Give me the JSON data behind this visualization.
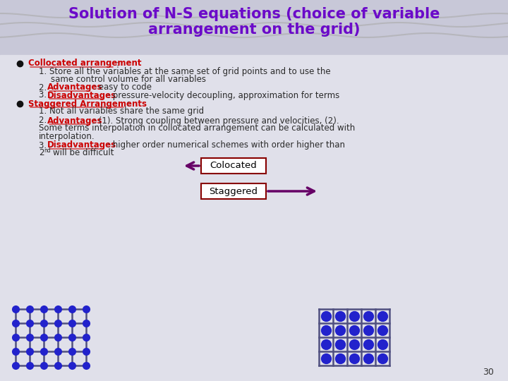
{
  "title_line1": "Solution of N-S equations (choice of variable",
  "title_line2": "arrangement on the grid)",
  "title_color": "#6B0AC9",
  "bg_color": "#E8E8F0",
  "header_bg_color": "#C8C8D8",
  "red_label_color": "#CC0000",
  "dark_text_color": "#2a2a2a",
  "grid_line_color": "#505080",
  "dot_color": "#2222CC",
  "arrow_color": "#660066",
  "box_border_color": "#880000",
  "page_num": "30"
}
